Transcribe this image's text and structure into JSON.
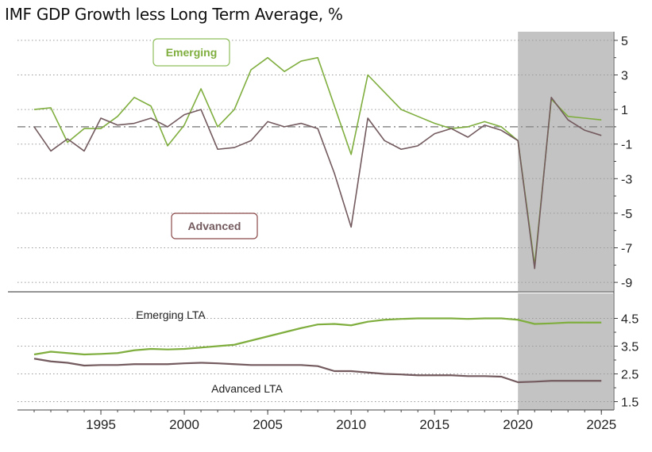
{
  "title": "IMF GDP Growth less Long Term Average, %",
  "colors": {
    "emerging": "#7fae3e",
    "advanced": "#735a5e",
    "forecast_shade": "#c3c3c3",
    "grid": "#9a9a9a",
    "advanced_label_border": "#8b4a4a",
    "emerging_label_border": "#8fbf5a"
  },
  "chart_data": [
    {
      "type": "line",
      "title": "IMF GDP Growth less Long Term Average, %",
      "ylim": [
        -9.5,
        5.5
      ],
      "yticks": [
        5,
        3,
        1,
        -1,
        -3,
        -5,
        -7,
        -9
      ],
      "grid": true,
      "forecast_shade_x": [
        2020.0,
        2025.7
      ],
      "x": [
        1991,
        1992,
        1993,
        1994,
        1995,
        1996,
        1997,
        1998,
        1999,
        2000,
        2001,
        2002,
        2003,
        2004,
        2005,
        2006,
        2007,
        2008,
        2009,
        2010,
        2011,
        2012,
        2013,
        2014,
        2015,
        2016,
        2017,
        2018,
        2019,
        2020,
        2021,
        2022,
        2023,
        2024,
        2025
      ],
      "series": [
        {
          "name": "Emerging",
          "color": "#7fae3e",
          "values": [
            1.0,
            1.1,
            -0.9,
            -0.1,
            -0.1,
            0.6,
            1.7,
            1.2,
            -1.1,
            0.1,
            2.2,
            0.0,
            1.0,
            3.3,
            4.0,
            3.2,
            3.8,
            4.0,
            1.2,
            -1.6,
            3.0,
            2.0,
            1.0,
            0.6,
            0.2,
            -0.1,
            0.0,
            0.3,
            0.0,
            -0.8,
            -8.0,
            1.6,
            0.6,
            0.5,
            0.4
          ]
        },
        {
          "name": "Advanced",
          "color": "#735a5e",
          "values": [
            0.0,
            -1.4,
            -0.7,
            -1.4,
            0.5,
            0.1,
            0.2,
            0.5,
            0.0,
            0.7,
            1.0,
            -1.3,
            -1.2,
            -0.8,
            0.3,
            0.0,
            0.2,
            -0.1,
            -2.7,
            -5.8,
            0.5,
            -0.8,
            -1.3,
            -1.1,
            -0.4,
            -0.1,
            -0.6,
            0.1,
            -0.2,
            -0.8,
            -8.2,
            1.7,
            0.4,
            -0.2,
            -0.5
          ]
        }
      ],
      "annotations": [
        "Emerging",
        "Advanced"
      ]
    },
    {
      "type": "line",
      "ylim": [
        1.2,
        5.4
      ],
      "yticks": [
        4.5,
        3.5,
        2.5,
        1.5
      ],
      "grid": true,
      "forecast_shade_x": [
        2020.0,
        2025.7
      ],
      "x": [
        1991,
        1992,
        1993,
        1994,
        1995,
        1996,
        1997,
        1998,
        1999,
        2000,
        2001,
        2002,
        2003,
        2004,
        2005,
        2006,
        2007,
        2008,
        2009,
        2010,
        2011,
        2012,
        2013,
        2014,
        2015,
        2016,
        2017,
        2018,
        2019,
        2020,
        2021,
        2022,
        2023,
        2024,
        2025
      ],
      "xticks": [
        1995,
        2000,
        2005,
        2010,
        2015,
        2020,
        2025
      ],
      "series": [
        {
          "name": "Emerging LTA",
          "color": "#7fae3e",
          "values": [
            3.2,
            3.3,
            3.25,
            3.2,
            3.22,
            3.25,
            3.35,
            3.4,
            3.38,
            3.4,
            3.45,
            3.5,
            3.55,
            3.7,
            3.85,
            4.0,
            4.15,
            4.28,
            4.3,
            4.25,
            4.38,
            4.45,
            4.48,
            4.5,
            4.5,
            4.5,
            4.48,
            4.5,
            4.5,
            4.45,
            4.3,
            4.32,
            4.35,
            4.35,
            4.35
          ]
        },
        {
          "name": "Advanced LTA",
          "color": "#735a5e",
          "values": [
            3.05,
            2.95,
            2.9,
            2.8,
            2.82,
            2.82,
            2.85,
            2.85,
            2.85,
            2.88,
            2.9,
            2.88,
            2.85,
            2.82,
            2.82,
            2.82,
            2.82,
            2.78,
            2.6,
            2.6,
            2.55,
            2.5,
            2.48,
            2.45,
            2.45,
            2.45,
            2.42,
            2.42,
            2.4,
            2.2,
            2.22,
            2.25,
            2.25,
            2.25,
            2.25
          ]
        }
      ],
      "annotations": [
        "Emerging LTA",
        "Advanced LTA"
      ]
    }
  ]
}
